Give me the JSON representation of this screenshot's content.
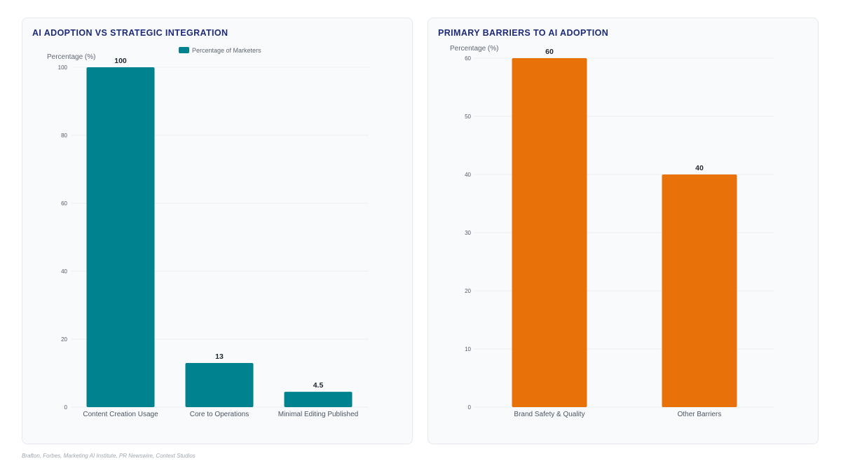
{
  "chart_data": [
    {
      "type": "bar",
      "title": "AI ADOPTION VS STRATEGIC INTEGRATION",
      "ylabel": "Percentage (%)",
      "xlabel": "",
      "categories": [
        "Content Creation Usage",
        "Core to Operations",
        "Minimal Editing Published"
      ],
      "series": [
        {
          "name": "Percentage of Marketers",
          "values": [
            100,
            13,
            4.5
          ],
          "color": "#00838f"
        }
      ],
      "value_labels": [
        "100",
        "13",
        "4.5"
      ],
      "ylim": [
        0,
        100
      ],
      "yticks": [
        0,
        20,
        40,
        60,
        80,
        100
      ],
      "legend": "top-center",
      "grid": true
    },
    {
      "type": "bar",
      "title": "PRIMARY BARRIERS TO AI ADOPTION",
      "ylabel": "Percentage (%)",
      "xlabel": "",
      "categories": [
        "Brand Safety & Quality",
        "Other Barriers"
      ],
      "series": [
        {
          "values": [
            60,
            40
          ],
          "color": "#e8710a"
        }
      ],
      "value_labels": [
        "60",
        "40"
      ],
      "ylim": [
        0,
        60
      ],
      "yticks": [
        0,
        10,
        20,
        30,
        40,
        50,
        60
      ],
      "legend": "none",
      "grid": true
    }
  ],
  "footer": {
    "source": "Brafton, Forbes, Marketing AI Institute, PR Newswire, Context Studios"
  }
}
